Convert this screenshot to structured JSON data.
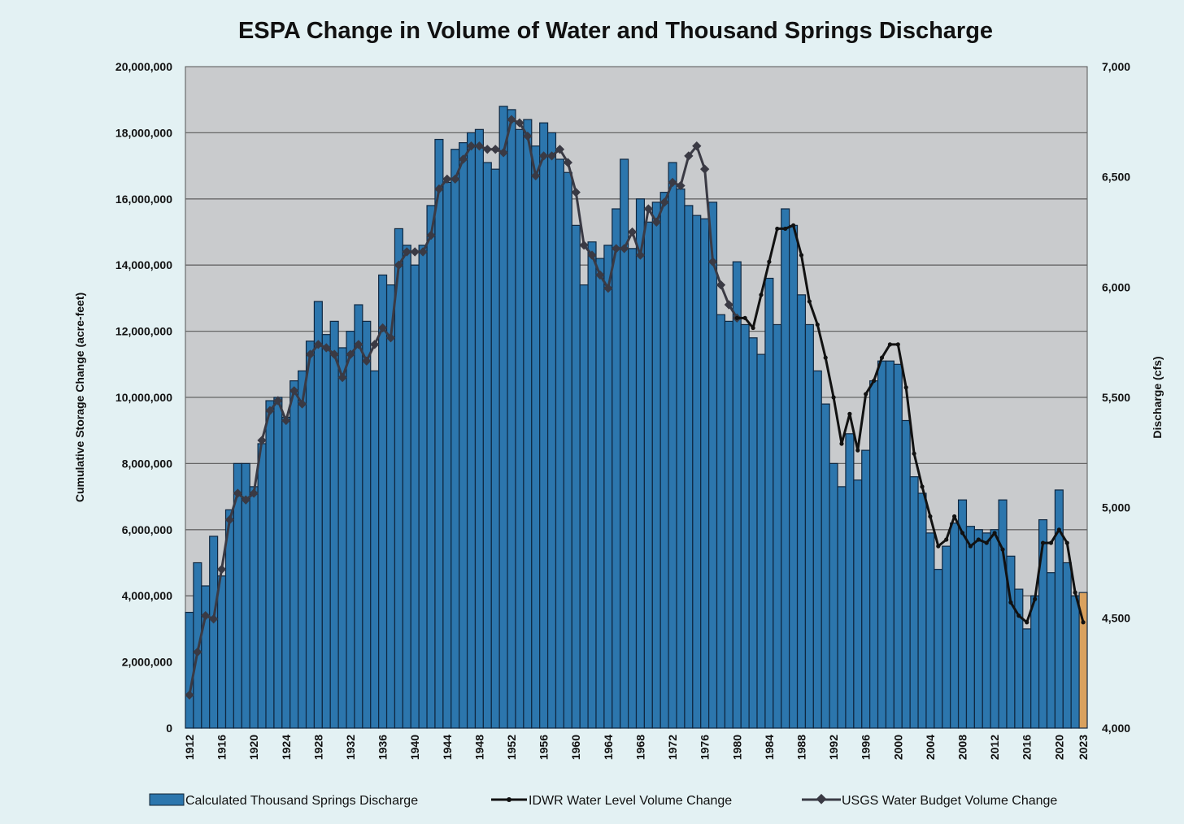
{
  "chart_data": {
    "type": "bar",
    "title": "ESPA Change in Volume of Water and Thousand Springs Discharge",
    "ylabel": "Cumulative Storage Change (acre-feet)",
    "y2label": "Discharge (cfs)",
    "ylim": [
      0,
      20000000
    ],
    "y2lim": [
      4000,
      7000
    ],
    "yticks": [
      "0",
      "2,000,000",
      "4,000,000",
      "6,000,000",
      "8,000,000",
      "10,000,000",
      "12,000,000",
      "14,000,000",
      "16,000,000",
      "18,000,000",
      "20,000,000"
    ],
    "y2ticks": [
      "4,000",
      "4,500",
      "5,000",
      "5,500",
      "6,000",
      "6,500",
      "7,000"
    ],
    "xticks": [
      "1912",
      "1916",
      "1920",
      "1924",
      "1928",
      "1932",
      "1936",
      "1940",
      "1944",
      "1948",
      "1952",
      "1956",
      "1960",
      "1964",
      "1968",
      "1972",
      "1976",
      "1980",
      "1984",
      "1988",
      "1992",
      "1996",
      "2000",
      "2004",
      "2008",
      "2012",
      "2016",
      "2020",
      "2023"
    ],
    "grid": true,
    "legend_position": "bottom",
    "start_year": 1912,
    "colors": {
      "bar": "#2c76ad",
      "bar_last": "#d9a15e",
      "idwr": "#111111",
      "usgs": "#3a3a44",
      "plot_bg": "#c9cbcd"
    },
    "series": [
      {
        "name": "Calculated Thousand Springs Discharge",
        "axis": "right",
        "unit": "cfs",
        "start_year": 1912,
        "values": [
          4525,
          4750,
          4645,
          4870,
          4690,
          4990,
          5200,
          5200,
          5095,
          5290,
          5485,
          5500,
          5410,
          5575,
          5620,
          5755,
          5935,
          5785,
          5845,
          5725,
          5800,
          5920,
          5845,
          5620,
          6055,
          6010,
          6265,
          6190,
          6100,
          6190,
          6370,
          6670,
          6475,
          6625,
          6655,
          6700,
          6715,
          6565,
          6535,
          6820,
          6805,
          6715,
          6760,
          6640,
          6745,
          6700,
          6580,
          6520,
          6280,
          6010,
          6205,
          6130,
          6190,
          6355,
          6580,
          6175,
          6400,
          6295,
          6385,
          6430,
          6565,
          6445,
          6370,
          6325,
          6310,
          6385,
          5875,
          5845,
          6115,
          5830,
          5770,
          5695,
          6040,
          5830,
          6355,
          6280,
          5965,
          5830,
          5620,
          5470,
          5200,
          5095,
          5335,
          5125,
          5260,
          5575,
          5665,
          5665,
          5650,
          5395,
          5140,
          5065,
          4885,
          4720,
          4825,
          4930,
          5035,
          4915,
          4900,
          4885,
          4900,
          5035,
          4780,
          4630,
          4450,
          4600,
          4945,
          4705,
          5080,
          4750,
          4600,
          4615
        ]
      },
      {
        "name": "IDWR Water Level Volume Change",
        "axis": "left",
        "unit": "acre-feet",
        "start_year": 1980,
        "values": [
          12400000.0,
          12400000.0,
          12100000.0,
          13100000.0,
          14100000.0,
          15100000.0,
          15100000.0,
          15200000.0,
          14300000.0,
          12900000.0,
          12200000.0,
          11200000.0,
          10000000.0,
          8600000.0,
          9500000.0,
          8400000.0,
          10100000.0,
          10500000.0,
          11200000.0,
          11600000.0,
          11600000.0,
          10300000.0,
          8300000.0,
          7300000.0,
          6400000.0,
          5500000.0,
          5700000.0,
          6400000.0,
          5900000.0,
          5500000.0,
          5700000.0,
          5600000.0,
          5900000.0,
          5400000.0,
          3800000.0,
          3400000.0,
          3200000.0,
          3900000.0,
          5600000.0,
          5600000.0,
          6000000.0,
          5600000.0,
          4100000.0,
          3200000.0
        ]
      },
      {
        "name": "USGS Water Budget Volume Change",
        "axis": "left",
        "unit": "acre-feet",
        "start_year": 1912,
        "values": [
          1000000.0,
          2300000.0,
          3400000.0,
          3300000.0,
          4800000.0,
          6300000.0,
          7100000.0,
          6900000.0,
          7100000.0,
          8700000.0,
          9600000.0,
          9900000.0,
          9300000.0,
          10200000.0,
          9800000.0,
          11300000.0,
          11600000.0,
          11500000.0,
          11300000.0,
          10600000.0,
          11300000.0,
          11600000.0,
          11100000.0,
          11600000.0,
          12100000.0,
          11800000.0,
          14000000.0,
          14400000.0,
          14400000.0,
          14400000.0,
          14900000.0,
          16300000.0,
          16600000.0,
          16600000.0,
          17200000.0,
          17600000.0,
          17600000.0,
          17500000.0,
          17500000.0,
          17400000.0,
          18400000.0,
          18300000.0,
          17900000.0,
          16700000.0,
          17300000.0,
          17300000.0,
          17500000.0,
          17100000.0,
          16200000.0,
          14600000.0,
          14300000.0,
          13700000.0,
          13300000.0,
          14500000.0,
          14500000.0,
          15000000.0,
          14300000.0,
          15700000.0,
          15300000.0,
          15900000.0,
          16500000.0,
          16400000.0,
          17300000.0,
          17600000.0,
          16900000.0,
          14100000.0,
          13400000.0,
          12800000.0,
          12400000.0
        ]
      }
    ]
  }
}
